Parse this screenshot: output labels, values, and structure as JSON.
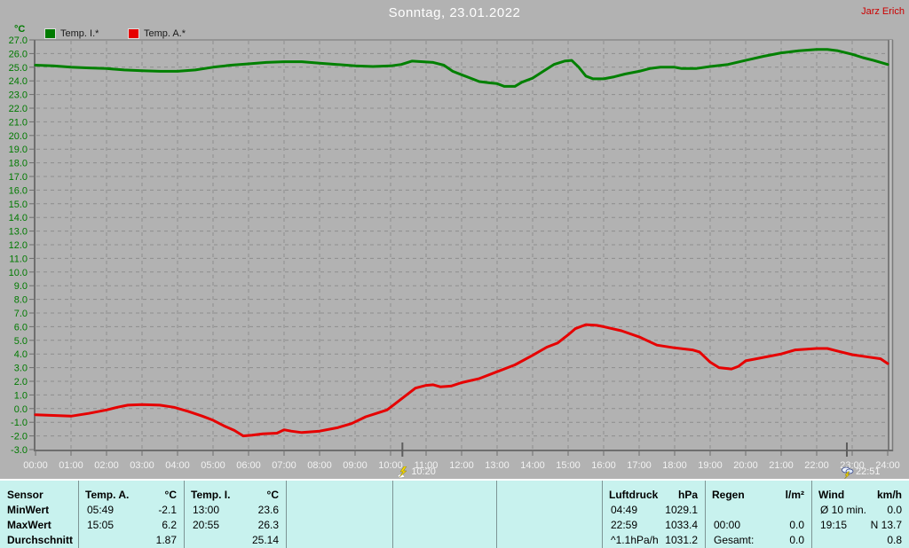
{
  "header": {
    "title": "Sonntag, 23.01.2022",
    "user": "Jarz Erich"
  },
  "legend": {
    "unit": "°C",
    "series": [
      {
        "label": "Temp. I.*",
        "color": "#007a00"
      },
      {
        "label": "Temp. A.*",
        "color": "#e60000"
      }
    ]
  },
  "chart_data": {
    "type": "line",
    "title": "Sonntag, 23.01.2022",
    "xlabel": "Uhrzeit",
    "ylabel": "°C",
    "ylim": [
      -3,
      27
    ],
    "y_step": 1,
    "grid": "dashed",
    "x_ticks": [
      "00:00",
      "01:00",
      "02:00",
      "03:00",
      "04:00",
      "05:00",
      "06:00",
      "07:00",
      "08:00",
      "09:00",
      "10:00",
      "11:00",
      "12:00",
      "13:00",
      "14:00",
      "15:00",
      "16:00",
      "17:00",
      "18:00",
      "19:00",
      "20:00",
      "21:00",
      "22:00",
      "23:00",
      "24:00"
    ],
    "axis_label_color": "#007a00",
    "x_label_color": "#f2f2f2",
    "series": [
      {
        "name": "Temp. I.*",
        "color": "#008000",
        "points": [
          [
            0,
            25.15
          ],
          [
            0.5,
            25.1
          ],
          [
            1,
            25.0
          ],
          [
            1.5,
            24.95
          ],
          [
            2,
            24.9
          ],
          [
            2.5,
            24.8
          ],
          [
            3,
            24.75
          ],
          [
            3.5,
            24.7
          ],
          [
            4,
            24.7
          ],
          [
            4.5,
            24.8
          ],
          [
            5,
            25.0
          ],
          [
            5.5,
            25.15
          ],
          [
            6,
            25.25
          ],
          [
            6.5,
            25.35
          ],
          [
            7,
            25.4
          ],
          [
            7.5,
            25.4
          ],
          [
            8,
            25.3
          ],
          [
            8.5,
            25.2
          ],
          [
            9,
            25.1
          ],
          [
            9.5,
            25.05
          ],
          [
            10,
            25.1
          ],
          [
            10.3,
            25.2
          ],
          [
            10.6,
            25.45
          ],
          [
            10.9,
            25.4
          ],
          [
            11.2,
            25.35
          ],
          [
            11.5,
            25.15
          ],
          [
            11.75,
            24.7
          ],
          [
            12,
            24.45
          ],
          [
            12.25,
            24.2
          ],
          [
            12.5,
            23.95
          ],
          [
            12.8,
            23.85
          ],
          [
            13,
            23.8
          ],
          [
            13.2,
            23.6
          ],
          [
            13.5,
            23.6
          ],
          [
            13.7,
            23.9
          ],
          [
            14,
            24.2
          ],
          [
            14.3,
            24.7
          ],
          [
            14.6,
            25.2
          ],
          [
            14.9,
            25.45
          ],
          [
            15.1,
            25.5
          ],
          [
            15.3,
            25.0
          ],
          [
            15.5,
            24.35
          ],
          [
            15.7,
            24.15
          ],
          [
            16,
            24.15
          ],
          [
            16.3,
            24.3
          ],
          [
            16.6,
            24.5
          ],
          [
            17,
            24.7
          ],
          [
            17.3,
            24.9
          ],
          [
            17.6,
            25.0
          ],
          [
            18,
            25.0
          ],
          [
            18.2,
            24.9
          ],
          [
            18.6,
            24.9
          ],
          [
            19,
            25.05
          ],
          [
            19.5,
            25.2
          ],
          [
            20,
            25.5
          ],
          [
            20.5,
            25.8
          ],
          [
            21,
            26.05
          ],
          [
            21.5,
            26.2
          ],
          [
            22,
            26.3
          ],
          [
            22.3,
            26.3
          ],
          [
            22.6,
            26.2
          ],
          [
            23,
            25.95
          ],
          [
            23.3,
            25.7
          ],
          [
            23.6,
            25.5
          ],
          [
            24,
            25.2
          ]
        ]
      },
      {
        "name": "Temp. A.*",
        "color": "#e60000",
        "points": [
          [
            0,
            -0.45
          ],
          [
            0.5,
            -0.5
          ],
          [
            1,
            -0.55
          ],
          [
            1.5,
            -0.35
          ],
          [
            2,
            -0.1
          ],
          [
            2.3,
            0.1
          ],
          [
            2.6,
            0.25
          ],
          [
            3,
            0.3
          ],
          [
            3.5,
            0.25
          ],
          [
            3.9,
            0.1
          ],
          [
            4.3,
            -0.2
          ],
          [
            4.7,
            -0.55
          ],
          [
            5,
            -0.85
          ],
          [
            5.3,
            -1.25
          ],
          [
            5.6,
            -1.6
          ],
          [
            5.85,
            -2.0
          ],
          [
            6.1,
            -1.95
          ],
          [
            6.4,
            -1.85
          ],
          [
            6.8,
            -1.8
          ],
          [
            7,
            -1.55
          ],
          [
            7.2,
            -1.65
          ],
          [
            7.5,
            -1.75
          ],
          [
            8,
            -1.65
          ],
          [
            8.5,
            -1.4
          ],
          [
            8.9,
            -1.1
          ],
          [
            9.3,
            -0.6
          ],
          [
            9.6,
            -0.35
          ],
          [
            9.9,
            -0.1
          ],
          [
            10.1,
            0.3
          ],
          [
            10.4,
            0.9
          ],
          [
            10.7,
            1.5
          ],
          [
            11,
            1.7
          ],
          [
            11.2,
            1.75
          ],
          [
            11.4,
            1.6
          ],
          [
            11.7,
            1.65
          ],
          [
            12,
            1.9
          ],
          [
            12.5,
            2.2
          ],
          [
            13,
            2.7
          ],
          [
            13.5,
            3.2
          ],
          [
            14,
            3.9
          ],
          [
            14.4,
            4.5
          ],
          [
            14.7,
            4.8
          ],
          [
            15,
            5.4
          ],
          [
            15.2,
            5.85
          ],
          [
            15.5,
            6.15
          ],
          [
            15.8,
            6.1
          ],
          [
            16,
            6.0
          ],
          [
            16.5,
            5.7
          ],
          [
            17,
            5.25
          ],
          [
            17.5,
            4.65
          ],
          [
            18,
            4.45
          ],
          [
            18.5,
            4.3
          ],
          [
            18.7,
            4.15
          ],
          [
            19,
            3.4
          ],
          [
            19.25,
            3.0
          ],
          [
            19.6,
            2.9
          ],
          [
            19.8,
            3.1
          ],
          [
            20,
            3.5
          ],
          [
            20.3,
            3.65
          ],
          [
            20.7,
            3.85
          ],
          [
            21,
            4.0
          ],
          [
            21.4,
            4.3
          ],
          [
            22,
            4.4
          ],
          [
            22.3,
            4.4
          ],
          [
            22.6,
            4.2
          ],
          [
            23,
            3.95
          ],
          [
            23.4,
            3.8
          ],
          [
            23.8,
            3.65
          ],
          [
            24,
            3.3
          ]
        ]
      }
    ],
    "markers": [
      {
        "time_label": "10:20",
        "hour": 10.333,
        "icon": "flash"
      },
      {
        "time_label": "22:51",
        "hour": 22.85,
        "icon": "storm"
      }
    ]
  },
  "table": {
    "row_labels": [
      "Sensor",
      "MinWert",
      "MaxWert",
      "Durchschnitt"
    ],
    "columns": [
      {
        "title": "Temp. A.",
        "unit": "°C",
        "rows": [
          [
            "05:49",
            "-2.1"
          ],
          [
            "15:05",
            "6.2"
          ],
          [
            "",
            "1.87"
          ]
        ]
      },
      {
        "title": "Temp. I.",
        "unit": "°C",
        "rows": [
          [
            "13:00",
            "23.6"
          ],
          [
            "20:55",
            "26.3"
          ],
          [
            "",
            "25.14"
          ]
        ]
      },
      {
        "title": "",
        "unit": "",
        "rows": [
          [
            "",
            ""
          ],
          [
            "",
            ""
          ],
          [
            "",
            ""
          ]
        ]
      },
      {
        "title": "",
        "unit": "",
        "rows": [
          [
            "",
            ""
          ],
          [
            "",
            ""
          ],
          [
            "",
            ""
          ]
        ]
      },
      {
        "title": "",
        "unit": "",
        "rows": [
          [
            "",
            ""
          ],
          [
            "",
            ""
          ],
          [
            "",
            ""
          ]
        ]
      },
      {
        "title": "Luftdruck",
        "unit": "hPa",
        "rows": [
          [
            "04:49",
            "1029.1"
          ],
          [
            "22:59",
            "1033.4"
          ],
          [
            "^1.1hPa/h",
            "1031.2"
          ]
        ]
      },
      {
        "title": "Regen",
        "unit": "l/m²",
        "rows": [
          [
            "",
            ""
          ],
          [
            "00:00",
            "0.0"
          ],
          [
            "Gesamt:",
            "0.0"
          ]
        ]
      },
      {
        "title": "Wind",
        "unit": "km/h",
        "rows": [
          [
            "Ø 10 min.",
            "0.0"
          ],
          [
            "19:15",
            "N 13.7"
          ],
          [
            "",
            "0.8"
          ]
        ]
      }
    ]
  }
}
